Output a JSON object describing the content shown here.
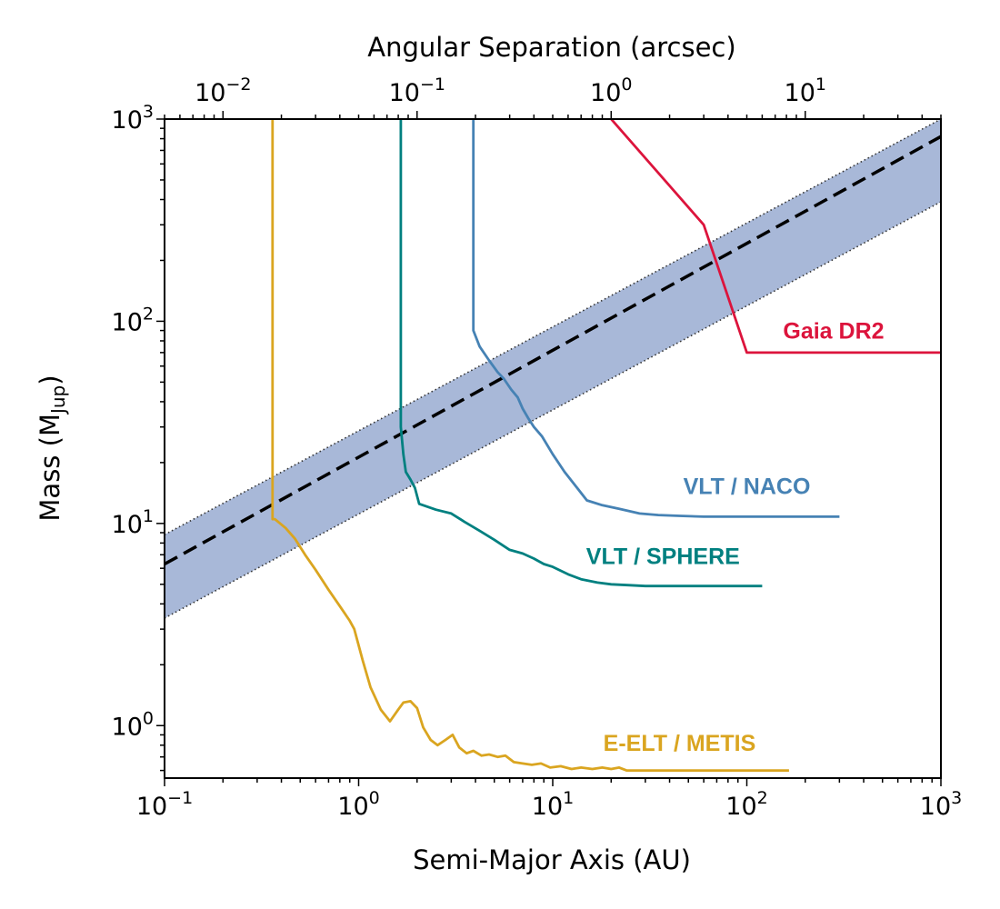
{
  "chart_data": {
    "type": "line",
    "xscale": "log",
    "yscale": "log",
    "xlim": [
      0.1,
      1000
    ],
    "ylim": [
      0.55,
      1000
    ],
    "xlabel": "Semi-Major Axis (AU)",
    "ylabel": {
      "main": "Mass (M",
      "sub": "Jup",
      "end": ")"
    },
    "top_axis": {
      "label": "Angular Separation (arcsec)",
      "lim": [
        0.005,
        50
      ],
      "ticks": [
        {
          "value": 0.01,
          "base": "10",
          "exp": "−2"
        },
        {
          "value": 0.1,
          "base": "10",
          "exp": "−1"
        },
        {
          "value": 1,
          "base": "10",
          "exp": "0"
        },
        {
          "value": 10,
          "base": "10",
          "exp": "1"
        }
      ]
    },
    "x_ticks": [
      {
        "value": 0.1,
        "base": "10",
        "exp": "−1"
      },
      {
        "value": 1,
        "base": "10",
        "exp": "0"
      },
      {
        "value": 10,
        "base": "10",
        "exp": "1"
      },
      {
        "value": 100,
        "base": "10",
        "exp": "2"
      },
      {
        "value": 1000,
        "base": "10",
        "exp": "3"
      }
    ],
    "y_ticks": [
      {
        "value": 1,
        "base": "10",
        "exp": "0"
      },
      {
        "value": 10,
        "base": "10",
        "exp": "1"
      },
      {
        "value": 100,
        "base": "10",
        "exp": "2"
      },
      {
        "value": 1000,
        "base": "10",
        "exp": "3"
      }
    ],
    "band": {
      "color": "#a8b8d8",
      "center": {
        "x": [
          0.1,
          1000
        ],
        "y": [
          6.3,
          820
        ],
        "style": "dashed",
        "color": "#000000"
      },
      "lower": {
        "x": [
          0.1,
          1000
        ],
        "y": [
          3.4,
          390
        ],
        "style": "dotted",
        "color": "#333333"
      },
      "upper": {
        "x": [
          0.1,
          1000
        ],
        "y": [
          8.8,
          1000
        ],
        "style": "dotted",
        "color": "#333333"
      }
    },
    "series": [
      {
        "name": "E-ELT / METIS",
        "color": "#daa520",
        "label": {
          "text": "E-ELT / METIS",
          "x": 45,
          "y": 0.75
        },
        "x": [
          0.36,
          0.36,
          0.37,
          0.42,
          0.47,
          0.53,
          0.6,
          0.7,
          0.8,
          0.9,
          0.95,
          1.05,
          1.15,
          1.3,
          1.45,
          1.6,
          1.7,
          1.85,
          2.0,
          2.15,
          2.35,
          2.55,
          2.8,
          3.05,
          3.3,
          3.6,
          3.9,
          4.3,
          4.7,
          5.2,
          5.7,
          6.3,
          7,
          7.8,
          8.7,
          9.7,
          11,
          12.5,
          14,
          16,
          18,
          20,
          22,
          24,
          26,
          30,
          40,
          60,
          100,
          165
        ],
        "y": [
          1000,
          10.5,
          10.5,
          9.5,
          8.4,
          7,
          5.9,
          4.7,
          3.9,
          3.3,
          3.0,
          2.1,
          1.55,
          1.2,
          1.05,
          1.2,
          1.3,
          1.32,
          1.22,
          0.98,
          0.85,
          0.8,
          0.85,
          0.9,
          0.78,
          0.73,
          0.75,
          0.71,
          0.72,
          0.7,
          0.71,
          0.66,
          0.65,
          0.64,
          0.65,
          0.62,
          0.63,
          0.61,
          0.62,
          0.61,
          0.62,
          0.61,
          0.62,
          0.6,
          0.6,
          0.6,
          0.6,
          0.6,
          0.6,
          0.6
        ]
      },
      {
        "name": "VLT / SPHERE",
        "color": "#008080",
        "label": {
          "text": "VLT / SPHERE",
          "x": 37,
          "y": 6.3
        },
        "x": [
          1.65,
          1.65,
          1.7,
          1.75,
          1.85,
          1.95,
          2.05,
          2.5,
          3,
          3.5,
          4.2,
          5,
          6,
          7,
          8,
          9,
          10,
          12,
          14,
          17,
          20,
          25,
          30,
          40,
          60,
          120
        ],
        "y": [
          1000,
          30,
          22,
          18,
          16.5,
          15,
          12.5,
          11.7,
          11.2,
          10.2,
          9.2,
          8.3,
          7.4,
          7.1,
          6.7,
          6.3,
          6.1,
          5.6,
          5.3,
          5.1,
          5.0,
          4.95,
          4.9,
          4.9,
          4.9,
          4.9
        ]
      },
      {
        "name": "VLT / NACO",
        "color": "#4682b4",
        "label": {
          "text": "VLT / NACO",
          "x": 100,
          "y": 14
        },
        "x": [
          3.9,
          3.9,
          4.2,
          4.7,
          5.2,
          5.6,
          6.1,
          6.6,
          7,
          7.5,
          8,
          8.8,
          10,
          11.5,
          13,
          15,
          18,
          22,
          28,
          35,
          45,
          60,
          100,
          200,
          300
        ],
        "y": [
          1000,
          90,
          75,
          64,
          56,
          52,
          46,
          42,
          37,
          33,
          30,
          27,
          22,
          18,
          15.5,
          13,
          12.3,
          11.8,
          11.2,
          11.0,
          10.9,
          10.8,
          10.8,
          10.8,
          10.8
        ]
      },
      {
        "name": "Gaia DR2",
        "color": "#dc143c",
        "label": {
          "text": "Gaia DR2",
          "x": 280,
          "y": 82
        },
        "x": [
          20,
          60,
          100,
          200,
          500,
          1000
        ],
        "y": [
          1000,
          300,
          70,
          70,
          70,
          70
        ]
      }
    ]
  }
}
